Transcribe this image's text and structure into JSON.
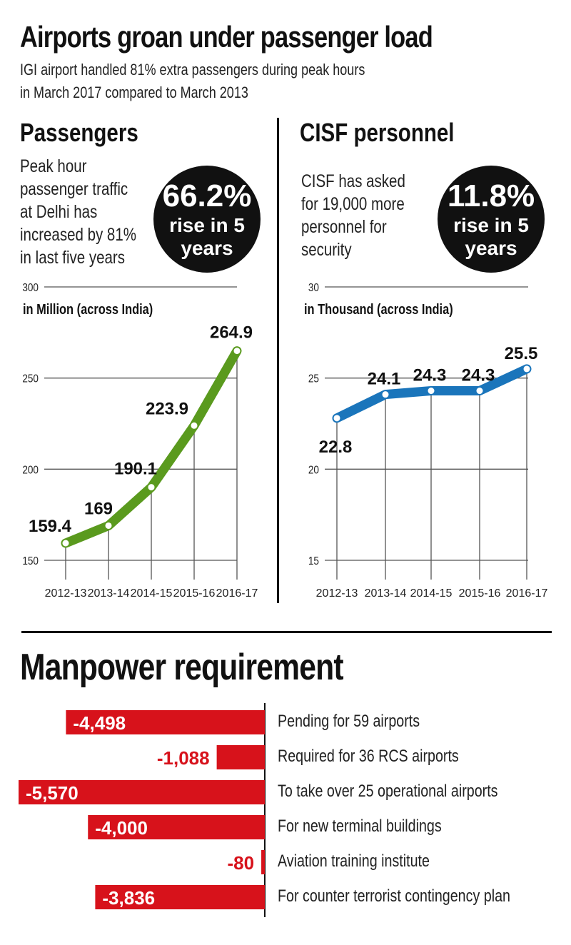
{
  "title": "Airports groan under passenger load",
  "subtitle": [
    "IGI airport handled 81% extra passengers during peak hours",
    "in March 2017 compared to March 2013"
  ],
  "passengers": {
    "heading": "Passengers",
    "description": [
      "Peak hour",
      "passenger traffic",
      "at Delhi has",
      "increased by 81%",
      "in last five years"
    ],
    "badge_value": "66.2%",
    "badge_text": [
      "rise in 5",
      "years"
    ]
  },
  "cisf": {
    "heading": "CISF personnel",
    "description": [
      "CISF has asked",
      "for 19,000 more",
      "personnel for",
      "security"
    ],
    "badge_value": "11.8%",
    "badge_text": [
      "rise in 5",
      "years"
    ]
  },
  "manpower": {
    "heading": "Manpower requirement"
  },
  "colors": {
    "green": "#5a9a1e",
    "blue": "#1a75bb",
    "red": "#d7121b"
  },
  "chart_data": [
    {
      "type": "line",
      "ylabel": "in Million (across India)",
      "categories": [
        "2012-13",
        "2013-14",
        "2014-15",
        "2015-16",
        "2016-17"
      ],
      "values": [
        159.4,
        169,
        190.1,
        223.9,
        264.9
      ],
      "data_labels": [
        "159.4",
        "169",
        "190.1",
        "223.9",
        "264.9"
      ],
      "yticks": [
        150,
        200,
        250,
        300
      ],
      "ylim": [
        150,
        300
      ],
      "grid": true
    },
    {
      "type": "line",
      "ylabel": "in Thousand  (across India)",
      "categories": [
        "2012-13",
        "2013-14",
        "2014-15",
        "2015-16",
        "2016-17"
      ],
      "values": [
        22.8,
        24.1,
        24.3,
        24.3,
        25.5
      ],
      "data_labels": [
        "22.8",
        "24.1",
        "24.3",
        "24.3",
        "25.5"
      ],
      "yticks": [
        15,
        20,
        25,
        30
      ],
      "ylim": [
        15,
        30
      ],
      "grid": true
    },
    {
      "type": "bar",
      "orientation": "horizontal",
      "categories": [
        "Pending for 59 airports",
        "Required for 36 RCS airports",
        "To take over 25 operational airports",
        "For new terminal buildings",
        "Aviation training institute",
        "For counter terrorist contingency plan"
      ],
      "values": [
        -4498,
        -1088,
        -5570,
        -4000,
        -80,
        -3836
      ],
      "data_labels": [
        "-4,498",
        "-1,088",
        "-5,570",
        "-4,000",
        "-80",
        "-3,836"
      ]
    }
  ]
}
